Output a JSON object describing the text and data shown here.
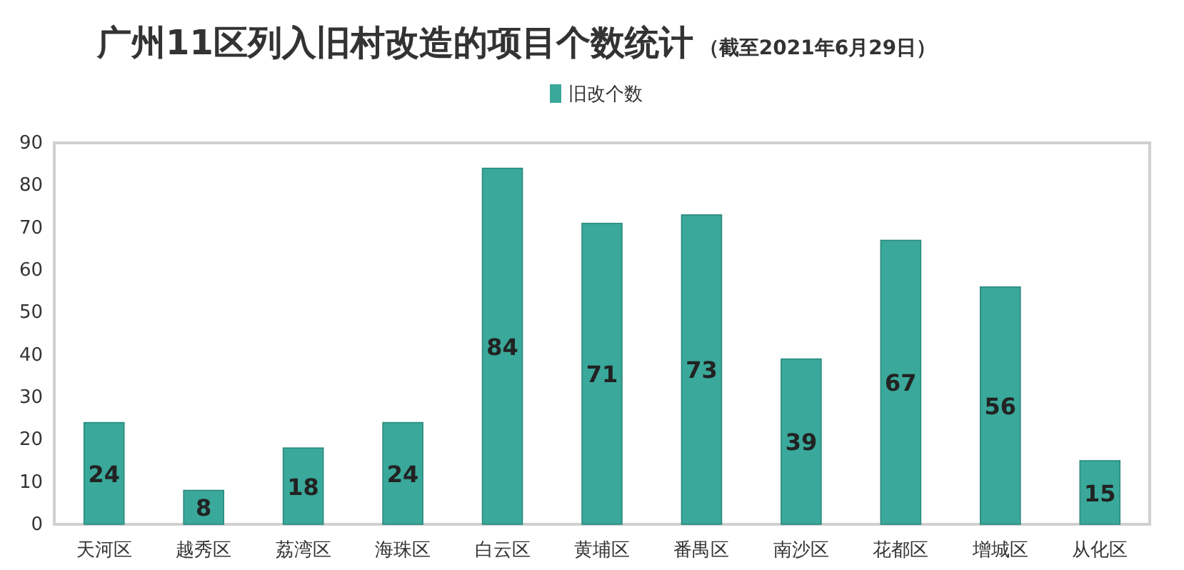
{
  "chart_data": {
    "type": "bar",
    "title": "广州11区列入旧村改造的项目个数统计",
    "subtitle": "（截至2021年6月29日）",
    "categories": [
      "天河区",
      "越秀区",
      "荔湾区",
      "海珠区",
      "白云区",
      "黄埔区",
      "番禺区",
      "南沙区",
      "花都区",
      "增城区",
      "从化区"
    ],
    "series": [
      {
        "name": "旧改个数",
        "color": "#3aa89a",
        "values": [
          24,
          8,
          18,
          24,
          84,
          71,
          73,
          39,
          67,
          56,
          15
        ]
      }
    ],
    "ylim": [
      0,
      90
    ],
    "yticks": [
      0,
      10,
      20,
      30,
      40,
      50,
      60,
      70,
      80,
      90
    ],
    "data_labels": true,
    "legend": "top"
  }
}
